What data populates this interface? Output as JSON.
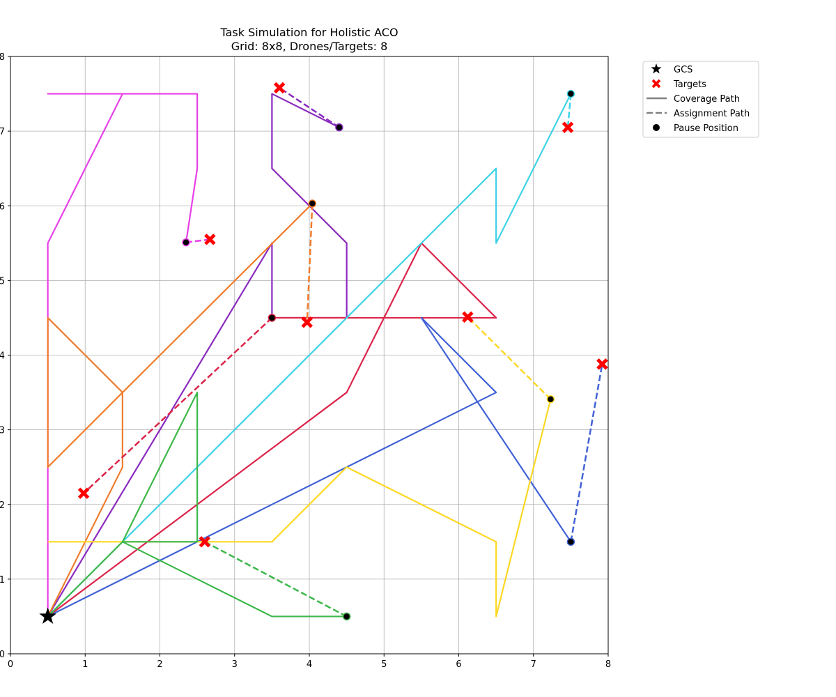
{
  "chart_data": {
    "type": "line",
    "title_line1": "Task Simulation for Holistic ACO",
    "title_line2": "Grid: 8x8, Drones/Targets: 8",
    "xlim": [
      0,
      8
    ],
    "ylim": [
      0,
      8
    ],
    "xticks": [
      "0",
      "1",
      "2",
      "3",
      "4",
      "5",
      "6",
      "7",
      "8"
    ],
    "yticks": [
      "0",
      "1",
      "2",
      "3",
      "4",
      "5",
      "6",
      "7",
      "8"
    ],
    "grid": true,
    "legend_position": "outside-top-right",
    "legend": [
      {
        "label": "GCS",
        "symbol": "star"
      },
      {
        "label": "Targets",
        "symbol": "x"
      },
      {
        "label": "Coverage Path",
        "symbol": "solid-line"
      },
      {
        "label": "Assignment Path",
        "symbol": "dashed-line"
      },
      {
        "label": "Pause Position",
        "symbol": "dot"
      }
    ],
    "gcs": [
      0.5,
      0.5
    ],
    "drones": [
      {
        "color": "#e83fe8",
        "coverage": [
          [
            0.5,
            0.5
          ],
          [
            0.5,
            5.5
          ],
          [
            1.5,
            7.5
          ],
          [
            0.5,
            7.5
          ],
          [
            2.5,
            7.5
          ],
          [
            2.5,
            6.5
          ],
          [
            2.35,
            5.51
          ]
        ],
        "pause": [
          2.35,
          5.51
        ],
        "target": [
          2.67,
          5.55
        ]
      },
      {
        "color": "#8a2bbf",
        "coverage": [
          [
            0.5,
            0.5
          ],
          [
            3.5,
            5.5
          ],
          [
            3.5,
            4.5
          ],
          [
            4.5,
            4.5
          ],
          [
            4.5,
            5.5
          ],
          [
            3.5,
            6.5
          ],
          [
            3.5,
            7.5
          ],
          [
            4.4,
            7.05
          ]
        ],
        "pause": [
          4.4,
          7.05
        ],
        "target": [
          3.6,
          7.58
        ]
      },
      {
        "color": "#f07c2c",
        "coverage": [
          [
            0.5,
            0.5
          ],
          [
            1.5,
            2.5
          ],
          [
            1.5,
            3.5
          ],
          [
            0.5,
            4.5
          ],
          [
            0.5,
            2.5
          ],
          [
            1.5,
            3.5
          ],
          [
            4.04,
            6.03
          ]
        ],
        "pause": [
          4.04,
          6.03
        ],
        "target": [
          3.97,
          4.44
        ]
      },
      {
        "color": "#dc2449",
        "coverage": [
          [
            0.5,
            0.5
          ],
          [
            4.5,
            3.5
          ],
          [
            5.5,
            5.5
          ],
          [
            6.5,
            4.5
          ],
          [
            3.5,
            4.5
          ]
        ],
        "pause": [
          3.5,
          4.5
        ],
        "target": [
          0.98,
          2.15
        ]
      },
      {
        "color": "#3ed2e8",
        "coverage": [
          [
            0.5,
            0.5
          ],
          [
            6.5,
            6.5
          ],
          [
            6.5,
            5.5
          ],
          [
            7.5,
            7.5
          ]
        ],
        "pause": [
          7.5,
          7.5
        ],
        "target": [
          7.46,
          7.05
        ]
      },
      {
        "color": "#4262d6",
        "coverage": [
          [
            0.5,
            0.5
          ],
          [
            6.5,
            3.5
          ],
          [
            5.5,
            4.5
          ],
          [
            7.5,
            1.5
          ]
        ],
        "pause": [
          7.5,
          1.5
        ],
        "target": [
          7.92,
          3.88
        ]
      },
      {
        "color": "#fcd824",
        "coverage": [
          [
            0.5,
            1.5
          ],
          [
            3.5,
            1.5
          ],
          [
            4.5,
            2.5
          ],
          [
            6.5,
            1.5
          ],
          [
            6.5,
            0.5
          ],
          [
            7.23,
            3.41
          ]
        ],
        "pause": [
          7.23,
          3.41
        ],
        "target": [
          6.12,
          4.51
        ]
      },
      {
        "color": "#3db84a",
        "coverage": [
          [
            0.5,
            0.5
          ],
          [
            1.5,
            1.5
          ],
          [
            2.5,
            3.5
          ],
          [
            2.5,
            1.5
          ],
          [
            1.5,
            1.5
          ],
          [
            3.5,
            0.5
          ],
          [
            4.5,
            0.5
          ]
        ],
        "pause": [
          4.5,
          0.5
        ],
        "target": [
          2.6,
          1.5
        ]
      }
    ]
  }
}
